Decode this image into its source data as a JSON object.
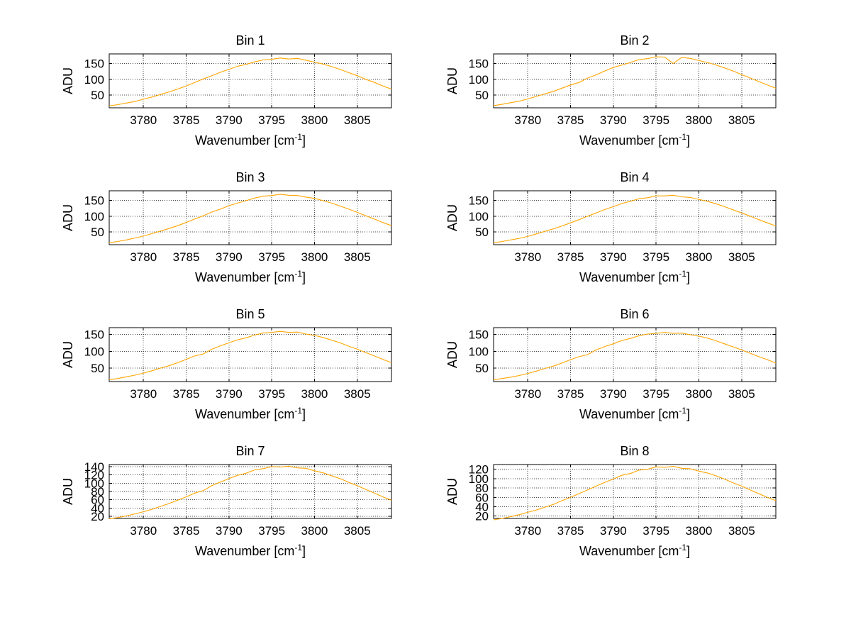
{
  "figure": {
    "background": "#ffffff",
    "curve_color": "#FFA500",
    "grid": "dotted",
    "layout": {
      "rows": 4,
      "cols": 2
    }
  },
  "chart_data": [
    {
      "type": "line",
      "title": "Bin 1",
      "xlabel": "Wavenumber [cm⁻¹]",
      "xlabel_pre": "Wavenumber [cm",
      "xlabel_sup": "-1",
      "xlabel_post": "]",
      "ylabel": "ADU",
      "xlim": [
        3776,
        3809
      ],
      "ylim": [
        10,
        180
      ],
      "xticks": [
        3780,
        3785,
        3790,
        3795,
        3800,
        3805
      ],
      "yticks": [
        50,
        100,
        150
      ],
      "x": [
        3776,
        3777,
        3778,
        3779,
        3780,
        3781,
        3782,
        3783,
        3784,
        3785,
        3786,
        3787,
        3788,
        3789,
        3790,
        3791,
        3792,
        3793,
        3794,
        3795,
        3796,
        3797,
        3798,
        3799,
        3800,
        3801,
        3802,
        3803,
        3804,
        3805,
        3806,
        3807,
        3808,
        3809
      ],
      "y": [
        16,
        20,
        25,
        30,
        37,
        44,
        52,
        60,
        69,
        79,
        90,
        101,
        111,
        122,
        131,
        141,
        147,
        155,
        161,
        163,
        167,
        164,
        166,
        160,
        154,
        148,
        140,
        131,
        121,
        111,
        100,
        90,
        79,
        69
      ]
    },
    {
      "type": "line",
      "title": "Bin 2",
      "xlabel": "Wavenumber [cm⁻¹]",
      "xlabel_pre": "Wavenumber [cm",
      "xlabel_sup": "-1",
      "xlabel_post": "]",
      "ylabel": "ADU",
      "xlim": [
        3776,
        3809
      ],
      "ylim": [
        10,
        180
      ],
      "xticks": [
        3780,
        3785,
        3790,
        3795,
        3800,
        3805
      ],
      "yticks": [
        50,
        100,
        150
      ],
      "x": [
        3776,
        3777,
        3778,
        3779,
        3780,
        3781,
        3782,
        3783,
        3784,
        3785,
        3786,
        3787,
        3788,
        3789,
        3790,
        3791,
        3792,
        3793,
        3794,
        3795,
        3796,
        3797,
        3798,
        3799,
        3800,
        3801,
        3802,
        3803,
        3804,
        3805,
        3806,
        3807,
        3808,
        3809
      ],
      "y": [
        17,
        21,
        26,
        31,
        38,
        46,
        54,
        62,
        72,
        82,
        90,
        104,
        114,
        126,
        137,
        145,
        153,
        162,
        165,
        171,
        170,
        150,
        169,
        166,
        159,
        153,
        145,
        136,
        126,
        115,
        104,
        93,
        82,
        72
      ]
    },
    {
      "type": "line",
      "title": "Bin 3",
      "xlabel": "Wavenumber [cm⁻¹]",
      "xlabel_pre": "Wavenumber [cm",
      "xlabel_sup": "-1",
      "xlabel_post": "]",
      "ylabel": "ADU",
      "xlim": [
        3776,
        3809
      ],
      "ylim": [
        10,
        180
      ],
      "xticks": [
        3780,
        3785,
        3790,
        3795,
        3800,
        3805
      ],
      "yticks": [
        50,
        100,
        150
      ],
      "x": [
        3776,
        3777,
        3778,
        3779,
        3780,
        3781,
        3782,
        3783,
        3784,
        3785,
        3786,
        3787,
        3788,
        3789,
        3790,
        3791,
        3792,
        3793,
        3794,
        3795,
        3796,
        3797,
        3798,
        3799,
        3800,
        3801,
        3802,
        3803,
        3804,
        3805,
        3806,
        3807,
        3808,
        3809
      ],
      "y": [
        16,
        20,
        25,
        31,
        37,
        45,
        53,
        61,
        70,
        80,
        91,
        101,
        113,
        122,
        133,
        141,
        149,
        157,
        163,
        165,
        169,
        166,
        165,
        160,
        156,
        149,
        141,
        132,
        122,
        112,
        101,
        91,
        80,
        70
      ]
    },
    {
      "type": "line",
      "title": "Bin 4",
      "xlabel": "Wavenumber [cm⁻¹]",
      "xlabel_pre": "Wavenumber [cm",
      "xlabel_sup": "-1",
      "xlabel_post": "]",
      "ylabel": "ADU",
      "xlim": [
        3776,
        3809
      ],
      "ylim": [
        10,
        180
      ],
      "xticks": [
        3780,
        3785,
        3790,
        3795,
        3800,
        3805
      ],
      "yticks": [
        50,
        100,
        150
      ],
      "x": [
        3776,
        3777,
        3778,
        3779,
        3780,
        3781,
        3782,
        3783,
        3784,
        3785,
        3786,
        3787,
        3788,
        3789,
        3790,
        3791,
        3792,
        3793,
        3794,
        3795,
        3796,
        3797,
        3798,
        3799,
        3800,
        3801,
        3802,
        3803,
        3804,
        3805,
        3806,
        3807,
        3808,
        3809
      ],
      "y": [
        16,
        20,
        25,
        30,
        36,
        44,
        52,
        60,
        69,
        79,
        89,
        100,
        110,
        121,
        130,
        140,
        147,
        155,
        158,
        164,
        164,
        166,
        161,
        159,
        153,
        147,
        139,
        130,
        120,
        110,
        100,
        89,
        79,
        69
      ]
    },
    {
      "type": "line",
      "title": "Bin 5",
      "xlabel": "Wavenumber [cm⁻¹]",
      "xlabel_pre": "Wavenumber [cm",
      "xlabel_sup": "-1",
      "xlabel_post": "]",
      "ylabel": "ADU",
      "xlim": [
        3776,
        3809
      ],
      "ylim": [
        10,
        170
      ],
      "xticks": [
        3780,
        3785,
        3790,
        3795,
        3800,
        3805
      ],
      "yticks": [
        50,
        100,
        150
      ],
      "x": [
        3776,
        3777,
        3778,
        3779,
        3780,
        3781,
        3782,
        3783,
        3784,
        3785,
        3786,
        3787,
        3788,
        3789,
        3790,
        3791,
        3792,
        3793,
        3794,
        3795,
        3796,
        3797,
        3798,
        3799,
        3800,
        3801,
        3802,
        3803,
        3804,
        3805,
        3806,
        3807,
        3808,
        3809
      ],
      "y": [
        15,
        19,
        24,
        29,
        35,
        42,
        50,
        57,
        66,
        76,
        86,
        92,
        106,
        116,
        125,
        134,
        140,
        148,
        154,
        156,
        159,
        156,
        157,
        151,
        147,
        141,
        133,
        125,
        115,
        106,
        96,
        86,
        76,
        66
      ]
    },
    {
      "type": "line",
      "title": "Bin 6",
      "xlabel": "Wavenumber [cm⁻¹]",
      "xlabel_pre": "Wavenumber [cm",
      "xlabel_sup": "-1",
      "xlabel_post": "]",
      "ylabel": "ADU",
      "xlim": [
        3776,
        3809
      ],
      "ylim": [
        10,
        170
      ],
      "xticks": [
        3780,
        3785,
        3790,
        3795,
        3800,
        3805
      ],
      "yticks": [
        50,
        100,
        150
      ],
      "x": [
        3776,
        3777,
        3778,
        3779,
        3780,
        3781,
        3782,
        3783,
        3784,
        3785,
        3786,
        3787,
        3788,
        3789,
        3790,
        3791,
        3792,
        3793,
        3794,
        3795,
        3796,
        3797,
        3798,
        3799,
        3800,
        3801,
        3802,
        3803,
        3804,
        3805,
        3806,
        3807,
        3808,
        3809
      ],
      "y": [
        15,
        19,
        23,
        28,
        34,
        41,
        49,
        56,
        65,
        75,
        84,
        90,
        104,
        114,
        122,
        132,
        138,
        146,
        151,
        153,
        156,
        153,
        154,
        149,
        145,
        139,
        131,
        122,
        113,
        104,
        94,
        84,
        75,
        65
      ]
    },
    {
      "type": "line",
      "title": "Bin 7",
      "xlabel": "Wavenumber [cm⁻¹]",
      "xlabel_pre": "Wavenumber [cm",
      "xlabel_sup": "-1",
      "xlabel_post": "]",
      "ylabel": "ADU",
      "xlim": [
        3776,
        3809
      ],
      "ylim": [
        15,
        145
      ],
      "xticks": [
        3780,
        3785,
        3790,
        3795,
        3800,
        3805
      ],
      "yticks": [
        20,
        40,
        60,
        80,
        100,
        120,
        140
      ],
      "x": [
        3776,
        3777,
        3778,
        3779,
        3780,
        3781,
        3782,
        3783,
        3784,
        3785,
        3786,
        3787,
        3788,
        3789,
        3790,
        3791,
        3792,
        3793,
        3794,
        3795,
        3796,
        3797,
        3798,
        3799,
        3800,
        3801,
        3802,
        3803,
        3804,
        3805,
        3806,
        3807,
        3808,
        3809
      ],
      "y": [
        14,
        17,
        21,
        26,
        31,
        37,
        44,
        51,
        59,
        67,
        76,
        82,
        94,
        103,
        111,
        119,
        124,
        132,
        135,
        140,
        139,
        141,
        137,
        136,
        130,
        125,
        118,
        111,
        102,
        94,
        85,
        76,
        67,
        59
      ]
    },
    {
      "type": "line",
      "title": "Bin 8",
      "xlabel": "Wavenumber [cm⁻¹]",
      "xlabel_pre": "Wavenumber [cm",
      "xlabel_sup": "-1",
      "xlabel_post": "]",
      "ylabel": "ADU",
      "xlim": [
        3776,
        3809
      ],
      "ylim": [
        15,
        130
      ],
      "xticks": [
        3780,
        3785,
        3790,
        3795,
        3800,
        3805
      ],
      "yticks": [
        20,
        40,
        60,
        80,
        100,
        120
      ],
      "x": [
        3776,
        3777,
        3778,
        3779,
        3780,
        3781,
        3782,
        3783,
        3784,
        3785,
        3786,
        3787,
        3788,
        3789,
        3790,
        3791,
        3792,
        3793,
        3794,
        3795,
        3796,
        3797,
        3798,
        3799,
        3800,
        3801,
        3802,
        3803,
        3804,
        3805,
        3806,
        3807,
        3808,
        3809
      ],
      "y": [
        12,
        15,
        19,
        23,
        28,
        33,
        39,
        45,
        53,
        60,
        68,
        76,
        84,
        92,
        99,
        107,
        111,
        118,
        120,
        125,
        124,
        126,
        122,
        121,
        116,
        112,
        106,
        99,
        91,
        84,
        76,
        68,
        60,
        53
      ]
    }
  ]
}
